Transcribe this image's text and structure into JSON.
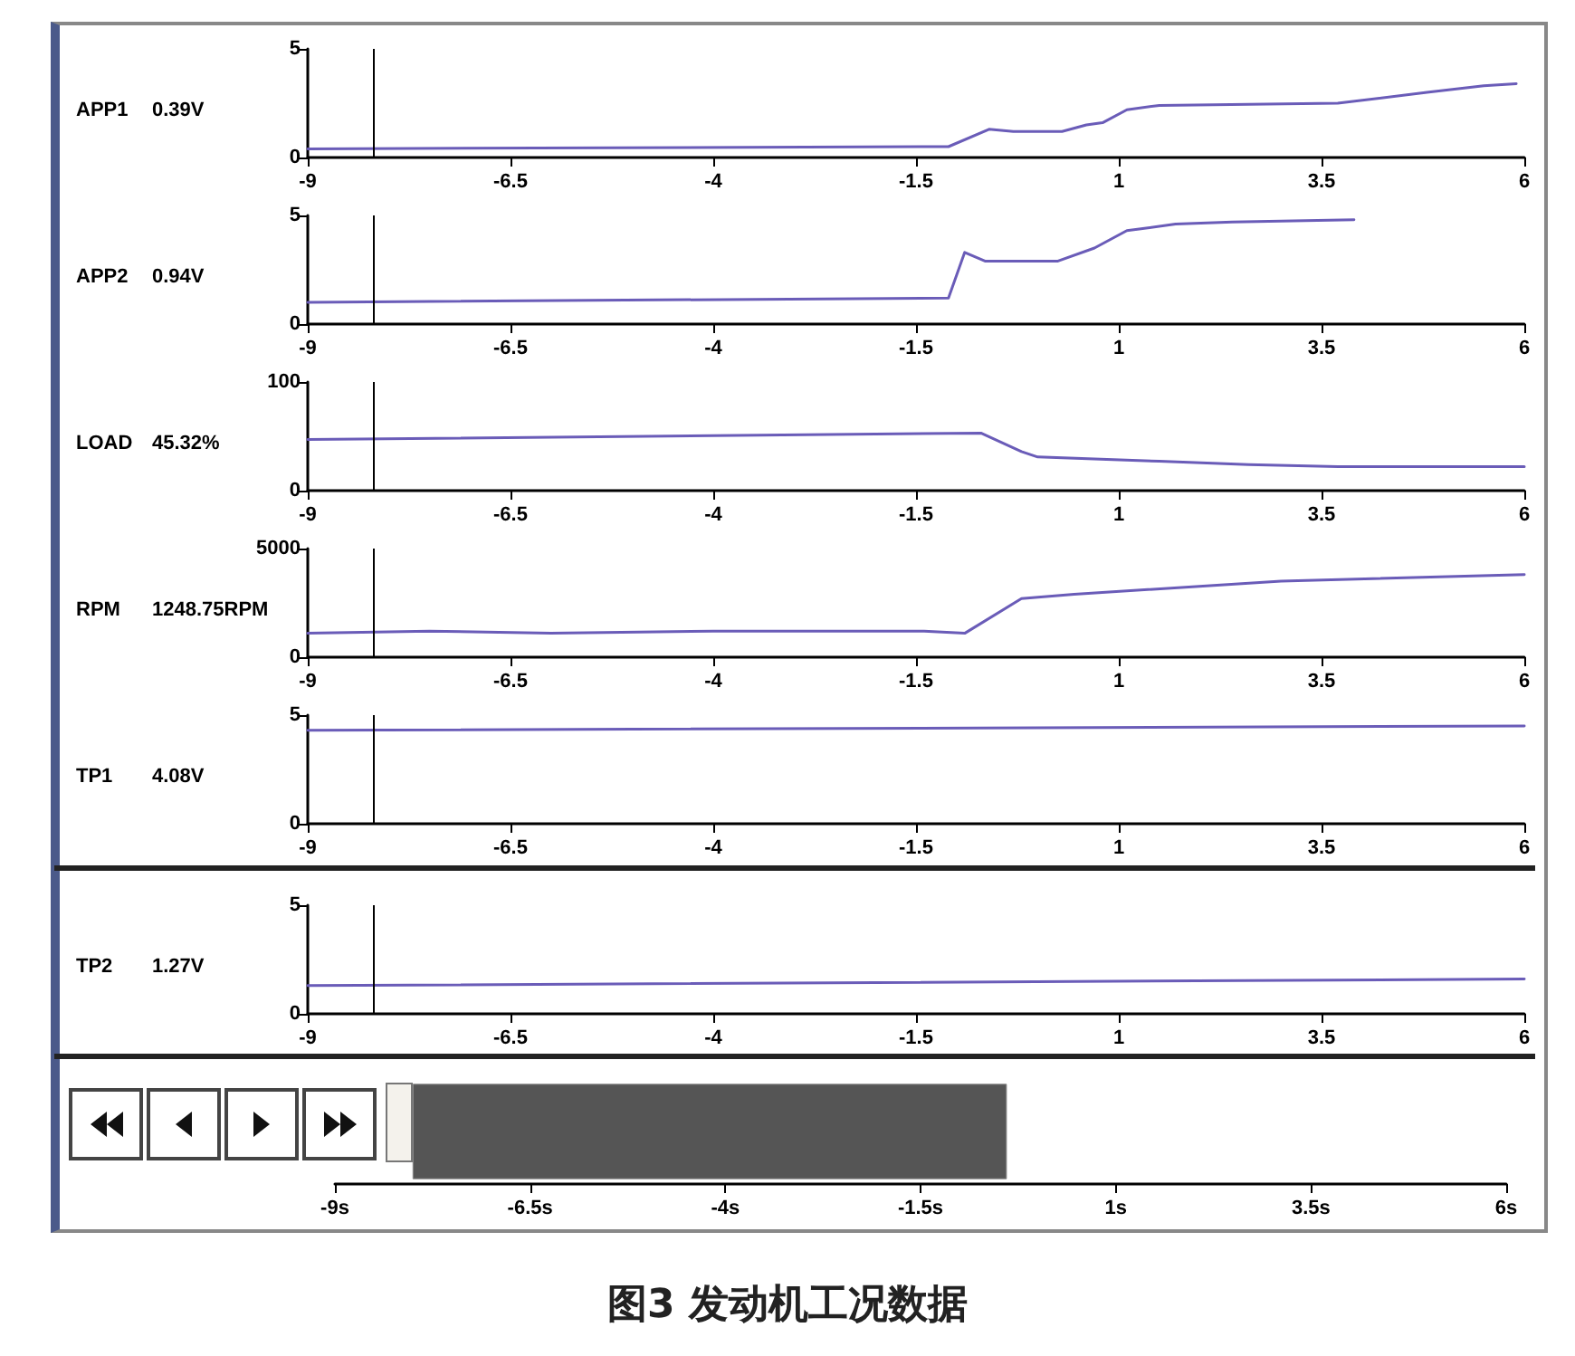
{
  "chart_data": [
    {
      "type": "line",
      "ylabel": "APP1",
      "annotations": [
        "0.39V"
      ],
      "x": [
        -9,
        -1.1,
        -0.6,
        -0.3,
        0.3,
        0.6,
        0.8,
        1.1,
        1.5,
        3.7,
        4.8,
        5.5,
        5.9
      ],
      "xlim": [
        -9,
        6
      ],
      "xticks": [
        -9,
        -6.5,
        -4,
        -1.5,
        1,
        3.5,
        6
      ],
      "ylim": [
        0,
        5
      ],
      "yticks": [
        0,
        5
      ],
      "grid": false,
      "marker": "none",
      "ref_lines": [
        {
          "axis": "x",
          "value": -8.2,
          "color": "#000000"
        }
      ],
      "series": [
        {
          "color": "#6a5cb8",
          "values": [
            0.4,
            0.5,
            1.3,
            1.2,
            1.2,
            1.5,
            1.6,
            2.2,
            2.4,
            2.5,
            3.0,
            3.3,
            3.4
          ]
        }
      ]
    },
    {
      "type": "line",
      "ylabel": "APP2",
      "annotations": [
        "0.94V"
      ],
      "x": [
        -9,
        -1.1,
        -0.9,
        -0.65,
        0.25,
        0.7,
        1.1,
        1.7,
        2.4,
        3.9
      ],
      "xlim": [
        -9,
        6
      ],
      "xticks": [
        -9,
        -6.5,
        -4,
        -1.5,
        1,
        3.5,
        6
      ],
      "ylim": [
        0,
        5
      ],
      "yticks": [
        0,
        5
      ],
      "grid": false,
      "marker": "none",
      "ref_lines": [
        {
          "axis": "x",
          "value": -8.2,
          "color": "#000000"
        }
      ],
      "series": [
        {
          "color": "#6a5cb8",
          "values": [
            1.0,
            1.2,
            3.3,
            2.9,
            2.9,
            3.5,
            4.3,
            4.6,
            4.7,
            4.8
          ]
        }
      ]
    },
    {
      "type": "line",
      "ylabel": "LOAD",
      "annotations": [
        "45.32%"
      ],
      "x": [
        -9,
        -0.7,
        -0.2,
        0,
        1.5,
        2.6,
        3.7,
        6
      ],
      "xlim": [
        -9,
        6
      ],
      "xticks": [
        -9,
        -6.5,
        -4,
        -1.5,
        1,
        3.5,
        6
      ],
      "ylim": [
        0,
        100
      ],
      "yticks": [
        0,
        100
      ],
      "grid": false,
      "marker": "none",
      "ref_lines": [
        {
          "axis": "x",
          "value": -8.2,
          "color": "#000000"
        }
      ],
      "series": [
        {
          "color": "#6a5cb8",
          "values": [
            47,
            53,
            36,
            31,
            27,
            24,
            22,
            22
          ]
        }
      ]
    },
    {
      "type": "line",
      "ylabel": "RPM",
      "annotations": [
        "1248.75RPM"
      ],
      "x": [
        -9,
        -7.5,
        -6,
        -4,
        -1.4,
        -0.9,
        -0.2,
        0.45,
        3.0,
        6
      ],
      "xlim": [
        -9,
        6
      ],
      "xticks": [
        -9,
        -6.5,
        -4,
        -1.5,
        1,
        3.5,
        6
      ],
      "ylim": [
        0,
        5000
      ],
      "yticks": [
        0,
        5000
      ],
      "grid": false,
      "marker": "none",
      "ref_lines": [
        {
          "axis": "x",
          "value": -8.2,
          "color": "#000000"
        }
      ],
      "series": [
        {
          "color": "#6a5cb8",
          "values": [
            1100,
            1200,
            1100,
            1200,
            1200,
            1100,
            2700,
            2900,
            3500,
            3800
          ]
        }
      ]
    },
    {
      "type": "line",
      "ylabel": "TP1",
      "annotations": [
        "4.08V"
      ],
      "x": [
        -9,
        6
      ],
      "xlim": [
        -9,
        6
      ],
      "xticks": [
        -9,
        -6.5,
        -4,
        -1.5,
        1,
        3.5,
        6
      ],
      "ylim": [
        0,
        5
      ],
      "yticks": [
        0,
        5
      ],
      "grid": false,
      "marker": "none",
      "ref_lines": [
        {
          "axis": "x",
          "value": -8.2,
          "color": "#000000"
        }
      ],
      "series": [
        {
          "color": "#6a5cb8",
          "values": [
            4.3,
            4.5
          ]
        }
      ]
    },
    {
      "type": "line",
      "ylabel": "TP2",
      "annotations": [
        "1.27V"
      ],
      "x": [
        -9,
        6
      ],
      "xlim": [
        -9,
        6
      ],
      "xticks": [
        -9,
        -6.5,
        -4,
        -1.5,
        1,
        3.5,
        6
      ],
      "ylim": [
        0,
        5
      ],
      "yticks": [
        0,
        5
      ],
      "grid": false,
      "marker": "none",
      "ref_lines": [
        {
          "axis": "x",
          "value": -8.2,
          "color": "#000000"
        }
      ],
      "series": [
        {
          "color": "#6a5cb8",
          "values": [
            1.3,
            1.6
          ]
        }
      ]
    },
    {
      "type": "bar",
      "orientation": "horizontal",
      "title": "图3 发动机工况数据",
      "categories": [
        null
      ],
      "series": [
        {
          "color": "#555555",
          "base": [
            -8.0
          ],
          "values": [
            7.6
          ]
        }
      ],
      "xlim": [
        -9,
        6
      ],
      "xticks": [
        {
          "value": -9,
          "label": "-9s"
        },
        {
          "value": -6.5,
          "label": "-6.5s"
        },
        {
          "value": -4,
          "label": "-4s"
        },
        {
          "value": -1.5,
          "label": "-1.5s"
        },
        {
          "value": 1,
          "label": "1s"
        },
        {
          "value": 3.5,
          "label": "3.5s"
        },
        {
          "value": 6,
          "label": "6s"
        }
      ],
      "tick_labels": "x"
    }
  ]
}
